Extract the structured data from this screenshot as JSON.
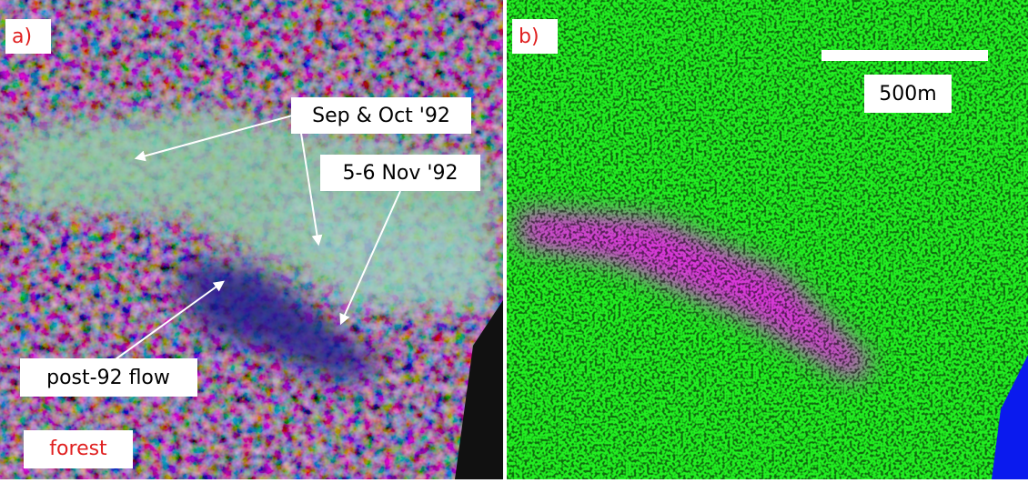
{
  "panels": [
    {
      "label": "a)",
      "annotations": [
        "Sep & Oct '92",
        "5-6 Nov '92",
        "post-92 flow",
        "forest"
      ]
    },
    {
      "label": "b)",
      "scale_bar": "500m"
    }
  ]
}
